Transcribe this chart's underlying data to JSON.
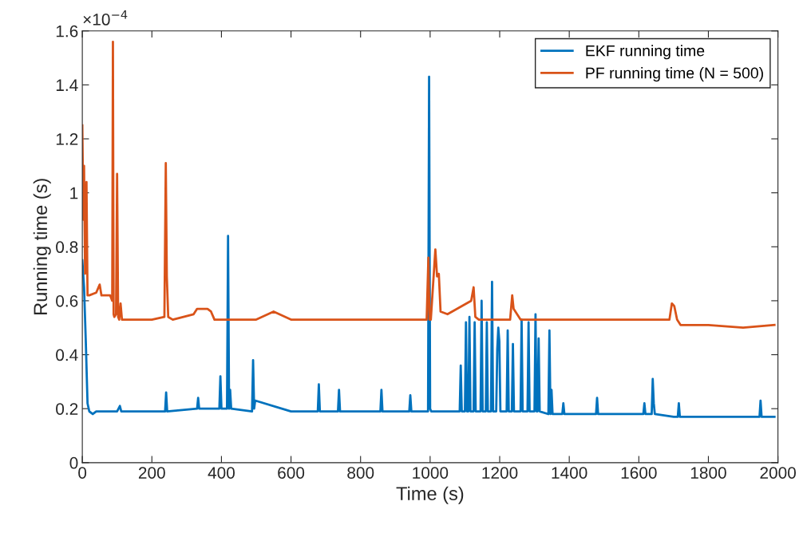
{
  "chart_data": {
    "type": "line",
    "xlabel": "Time (s)",
    "ylabel": "Running time (s)",
    "annotations": [
      "×10$^{−4}$"
    ],
    "xlim": [
      0,
      2000
    ],
    "ylim": [
      0,
      1.6
    ],
    "xticks": [
      0,
      200,
      400,
      600,
      800,
      1000,
      1200,
      1400,
      1600,
      1800,
      2000
    ],
    "yticks": [
      0,
      0.2,
      0.4,
      0.6,
      0.8,
      1,
      1.2,
      1.4,
      1.6
    ],
    "grid": false,
    "legend": "top right",
    "line_style": "solid",
    "marker": "none",
    "series": [
      {
        "name": "EKF running time",
        "color": "#0072bd",
        "x": [
          0,
          5,
          10,
          15,
          20,
          30,
          40,
          100,
          108,
          112,
          200,
          238,
          241,
          244,
          330,
          333,
          336,
          394,
          397,
          400,
          416,
          419,
          422,
          425,
          428,
          488,
          491,
          494,
          497,
          600,
          677,
          680,
          683,
          735,
          738,
          741,
          857,
          860,
          863,
          940,
          943,
          946,
          994,
          997,
          1000,
          1003,
          1085,
          1088,
          1091,
          1100,
          1103,
          1106,
          1110,
          1113,
          1116,
          1125,
          1128,
          1131,
          1145,
          1148,
          1151,
          1160,
          1163,
          1166,
          1175,
          1178,
          1181,
          1190,
          1193,
          1196,
          1199,
          1202,
          1205,
          1220,
          1223,
          1226,
          1235,
          1238,
          1241,
          1260,
          1263,
          1266,
          1280,
          1283,
          1286,
          1300,
          1303,
          1306,
          1309,
          1312,
          1315,
          1340,
          1343,
          1346,
          1349,
          1352,
          1380,
          1383,
          1386,
          1477,
          1480,
          1483,
          1500,
          1600,
          1613,
          1616,
          1619,
          1637,
          1640,
          1643,
          1646,
          1700,
          1712,
          1715,
          1718,
          1800,
          1900,
          1947,
          1950,
          1953,
          1990
        ],
        "values": [
          0.75,
          0.65,
          0.45,
          0.22,
          0.19,
          0.18,
          0.19,
          0.19,
          0.21,
          0.19,
          0.19,
          0.19,
          0.26,
          0.19,
          0.2,
          0.24,
          0.2,
          0.2,
          0.32,
          0.2,
          0.2,
          0.84,
          0.2,
          0.27,
          0.2,
          0.19,
          0.38,
          0.2,
          0.23,
          0.19,
          0.19,
          0.29,
          0.19,
          0.19,
          0.27,
          0.19,
          0.19,
          0.27,
          0.19,
          0.19,
          0.25,
          0.19,
          0.19,
          1.43,
          0.2,
          0.19,
          0.19,
          0.36,
          0.19,
          0.19,
          0.52,
          0.19,
          0.19,
          0.54,
          0.19,
          0.19,
          0.52,
          0.19,
          0.19,
          0.6,
          0.19,
          0.19,
          0.52,
          0.19,
          0.19,
          0.67,
          0.19,
          0.19,
          0.42,
          0.5,
          0.45,
          0.19,
          0.19,
          0.19,
          0.49,
          0.19,
          0.19,
          0.44,
          0.19,
          0.19,
          0.53,
          0.19,
          0.19,
          0.52,
          0.19,
          0.19,
          0.55,
          0.19,
          0.19,
          0.46,
          0.19,
          0.18,
          0.49,
          0.18,
          0.27,
          0.18,
          0.18,
          0.22,
          0.18,
          0.18,
          0.24,
          0.18,
          0.18,
          0.18,
          0.18,
          0.22,
          0.18,
          0.18,
          0.31,
          0.22,
          0.18,
          0.17,
          0.17,
          0.22,
          0.17,
          0.17,
          0.17,
          0.17,
          0.23,
          0.17,
          0.17
        ]
      },
      {
        "name": "PF running time (N = 500)",
        "color": "#d95319",
        "x": [
          0,
          3,
          5,
          8,
          12,
          15,
          20,
          40,
          50,
          55,
          80,
          86,
          88,
          90,
          92,
          97,
          100,
          103,
          106,
          110,
          114,
          130,
          200,
          236,
          240,
          243,
          247,
          260,
          320,
          330,
          360,
          370,
          380,
          500,
          550,
          600,
          700,
          800,
          990,
          995,
          998,
          1002,
          1015,
          1020,
          1025,
          1030,
          1050,
          1118,
          1125,
          1130,
          1140,
          1230,
          1236,
          1240,
          1260,
          1400,
          1600,
          1688,
          1695,
          1702,
          1710,
          1720,
          1800,
          1900,
          1990
        ],
        "values": [
          1.25,
          0.9,
          1.1,
          0.7,
          1.04,
          0.62,
          0.62,
          0.63,
          0.66,
          0.62,
          0.62,
          0.6,
          1.56,
          0.55,
          0.54,
          0.55,
          1.07,
          0.54,
          0.53,
          0.59,
          0.53,
          0.53,
          0.53,
          0.54,
          1.11,
          0.69,
          0.54,
          0.53,
          0.55,
          0.57,
          0.57,
          0.56,
          0.53,
          0.53,
          0.56,
          0.53,
          0.53,
          0.53,
          0.53,
          0.76,
          0.53,
          0.53,
          0.79,
          0.69,
          0.7,
          0.56,
          0.55,
          0.6,
          0.65,
          0.54,
          0.53,
          0.53,
          0.62,
          0.57,
          0.53,
          0.53,
          0.53,
          0.53,
          0.59,
          0.58,
          0.53,
          0.51,
          0.51,
          0.5,
          0.51
        ]
      }
    ]
  }
}
